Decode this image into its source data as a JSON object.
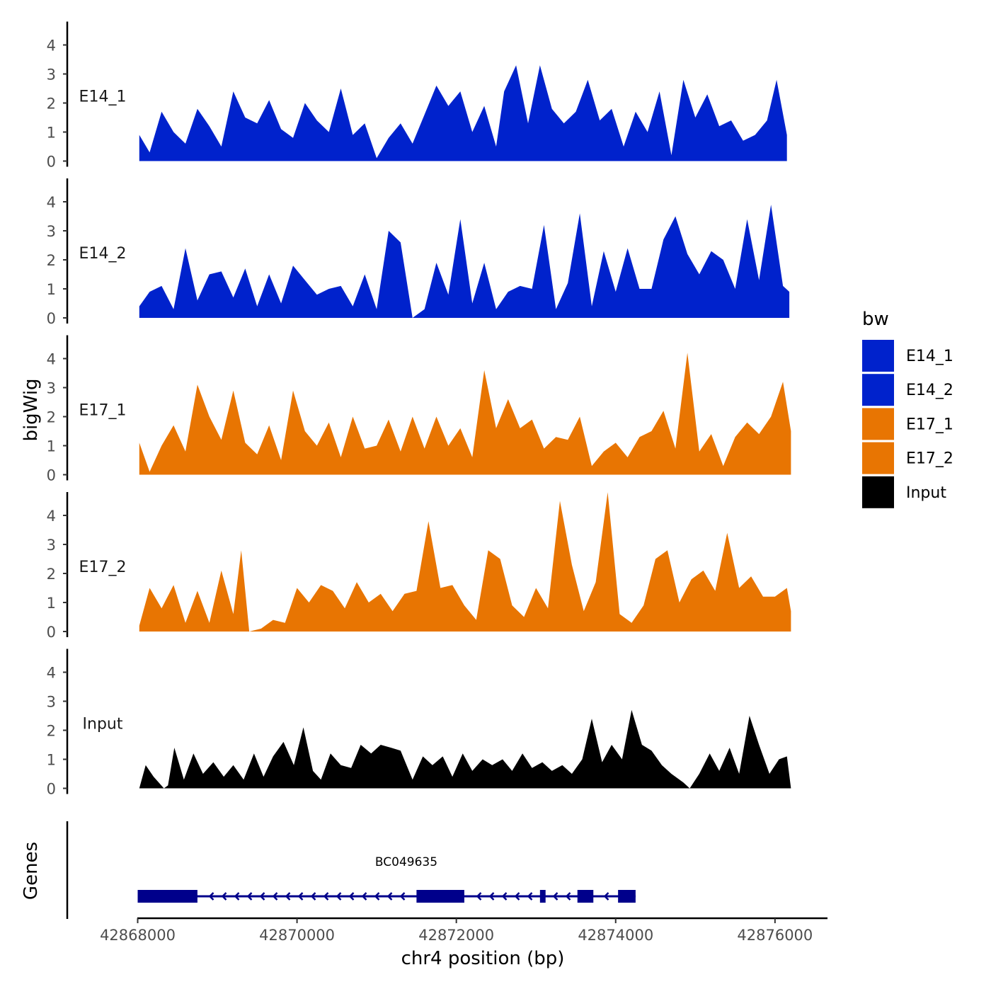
{
  "chart_data": {
    "type": "area",
    "title": "",
    "ylabel": "bigWig",
    "genes_label": "Genes",
    "xlabel": "chr4 position (bp)",
    "xlim": [
      42867800,
      42876650
    ],
    "ylim": [
      0,
      4.8
    ],
    "x_ticks": [
      42868000,
      42870000,
      42872000,
      42874000,
      42876000
    ],
    "y_ticks": [
      0,
      1,
      2,
      3,
      4
    ],
    "legend": {
      "title": "bw",
      "position": "right",
      "items": [
        {
          "label": "E14_1",
          "color": "#0022CC"
        },
        {
          "label": "E14_2",
          "color": "#0022CC"
        },
        {
          "label": "E17_1",
          "color": "#E87502"
        },
        {
          "label": "E17_2",
          "color": "#E87502"
        },
        {
          "label": "Input",
          "color": "#000000"
        }
      ]
    },
    "series": [
      {
        "name": "E14_1",
        "color": "#0022CC",
        "x": [
          42868020,
          42868150,
          42868300,
          42868450,
          42868600,
          42868750,
          42868900,
          42869050,
          42869200,
          42869350,
          42869500,
          42869650,
          42869800,
          42869950,
          42870100,
          42870250,
          42870400,
          42870550,
          42870700,
          42870850,
          42871000,
          42871150,
          42871300,
          42871450,
          42871600,
          42871750,
          42871900,
          42872050,
          42872200,
          42872350,
          42872500,
          42872600,
          42872750,
          42872900,
          42873050,
          42873200,
          42873350,
          42873500,
          42873650,
          42873800,
          42873950,
          42874100,
          42874250,
          42874400,
          42874550,
          42874700,
          42874850,
          42875000,
          42875150,
          42875300,
          42875450,
          42875600,
          42875750,
          42875900,
          42876020,
          42876150
        ],
        "values": [
          0.9,
          0.3,
          1.7,
          1.0,
          0.6,
          1.8,
          1.2,
          0.5,
          2.4,
          1.5,
          1.3,
          2.1,
          1.1,
          0.8,
          2.0,
          1.4,
          1.0,
          2.5,
          0.9,
          1.3,
          0.1,
          0.8,
          1.3,
          0.6,
          1.6,
          2.6,
          1.9,
          2.4,
          1.0,
          1.9,
          0.5,
          2.4,
          3.3,
          1.3,
          3.3,
          1.8,
          1.3,
          1.7,
          2.8,
          1.4,
          1.8,
          0.5,
          1.7,
          1.0,
          2.4,
          0.2,
          2.8,
          1.5,
          2.3,
          1.2,
          1.4,
          0.7,
          0.9,
          1.4,
          2.8,
          0.9
        ]
      },
      {
        "name": "E14_2",
        "color": "#0022CC",
        "x": [
          42868020,
          42868150,
          42868300,
          42868450,
          42868600,
          42868750,
          42868900,
          42869050,
          42869200,
          42869350,
          42869500,
          42869650,
          42869800,
          42869950,
          42870100,
          42870250,
          42870400,
          42870550,
          42870700,
          42870850,
          42871000,
          42871150,
          42871300,
          42871450,
          42871600,
          42871750,
          42871900,
          42872050,
          42872200,
          42872350,
          42872500,
          42872650,
          42872800,
          42872950,
          42873100,
          42873250,
          42873400,
          42873550,
          42873700,
          42873850,
          42874000,
          42874150,
          42874300,
          42874450,
          42874600,
          42874750,
          42874900,
          42875050,
          42875200,
          42875350,
          42875500,
          42875650,
          42875800,
          42875950,
          42876100,
          42876180
        ],
        "values": [
          0.4,
          0.9,
          1.1,
          0.3,
          2.4,
          0.6,
          1.5,
          1.6,
          0.7,
          1.7,
          0.4,
          1.5,
          0.5,
          1.8,
          1.3,
          0.8,
          1.0,
          1.1,
          0.4,
          1.5,
          0.3,
          3.0,
          2.6,
          0.0,
          0.3,
          1.9,
          0.8,
          3.4,
          0.5,
          1.9,
          0.3,
          0.9,
          1.1,
          1.0,
          3.2,
          0.3,
          1.2,
          3.6,
          0.4,
          2.3,
          0.9,
          2.4,
          1.0,
          1.0,
          2.7,
          3.5,
          2.2,
          1.5,
          2.3,
          2.0,
          1.0,
          3.4,
          1.3,
          3.9,
          1.1,
          0.9
        ]
      },
      {
        "name": "E17_1",
        "color": "#E87502",
        "x": [
          42868020,
          42868150,
          42868300,
          42868450,
          42868600,
          42868750,
          42868900,
          42869050,
          42869200,
          42869350,
          42869500,
          42869650,
          42869800,
          42869950,
          42870100,
          42870250,
          42870400,
          42870550,
          42870700,
          42870850,
          42871000,
          42871150,
          42871300,
          42871450,
          42871600,
          42871750,
          42871900,
          42872050,
          42872200,
          42872350,
          42872500,
          42872650,
          42872800,
          42872950,
          42873100,
          42873250,
          42873400,
          42873550,
          42873700,
          42873850,
          42874000,
          42874150,
          42874300,
          42874450,
          42874600,
          42874750,
          42874900,
          42875050,
          42875200,
          42875350,
          42875500,
          42875650,
          42875800,
          42875950,
          42876100,
          42876200
        ],
        "values": [
          1.1,
          0.1,
          1.0,
          1.7,
          0.8,
          3.1,
          2.0,
          1.2,
          2.9,
          1.1,
          0.7,
          1.7,
          0.5,
          2.9,
          1.5,
          1.0,
          1.8,
          0.6,
          2.0,
          0.9,
          1.0,
          1.9,
          0.8,
          2.0,
          0.9,
          2.0,
          1.0,
          1.6,
          0.6,
          3.6,
          1.6,
          2.6,
          1.6,
          1.9,
          0.9,
          1.3,
          1.2,
          2.0,
          0.3,
          0.8,
          1.1,
          0.6,
          1.3,
          1.5,
          2.2,
          0.9,
          4.2,
          0.8,
          1.4,
          0.3,
          1.3,
          1.8,
          1.4,
          2.0,
          3.2,
          1.5
        ]
      },
      {
        "name": "E17_2",
        "color": "#E87502",
        "x": [
          42868020,
          42868150,
          42868300,
          42868450,
          42868600,
          42868750,
          42868900,
          42869050,
          42869200,
          42869300,
          42869400,
          42869550,
          42869700,
          42869850,
          42870000,
          42870150,
          42870300,
          42870450,
          42870600,
          42870750,
          42870900,
          42871050,
          42871200,
          42871350,
          42871500,
          42871650,
          42871800,
          42871950,
          42872100,
          42872250,
          42872400,
          42872550,
          42872700,
          42872850,
          42873000,
          42873150,
          42873300,
          42873450,
          42873600,
          42873750,
          42873900,
          42874050,
          42874200,
          42874350,
          42874500,
          42874650,
          42874800,
          42874950,
          42875100,
          42875250,
          42875400,
          42875550,
          42875700,
          42875850,
          42876000,
          42876150,
          42876200
        ],
        "values": [
          0.2,
          1.5,
          0.8,
          1.6,
          0.3,
          1.4,
          0.3,
          2.1,
          0.6,
          2.8,
          0.0,
          0.1,
          0.4,
          0.3,
          1.5,
          1.0,
          1.6,
          1.4,
          0.8,
          1.7,
          1.0,
          1.3,
          0.7,
          1.3,
          1.4,
          3.8,
          1.5,
          1.6,
          0.9,
          0.4,
          2.8,
          2.5,
          0.9,
          0.5,
          1.5,
          0.8,
          4.5,
          2.3,
          0.7,
          1.7,
          4.8,
          0.6,
          0.3,
          0.9,
          2.5,
          2.8,
          1.0,
          1.8,
          2.1,
          1.4,
          3.4,
          1.5,
          1.9,
          1.2,
          1.2,
          1.5,
          0.7
        ]
      },
      {
        "name": "Input",
        "color": "#000000",
        "x": [
          42868020,
          42868100,
          42868200,
          42868330,
          42868380,
          42868460,
          42868580,
          42868700,
          42868820,
          42868950,
          42869080,
          42869200,
          42869330,
          42869460,
          42869580,
          42869700,
          42869830,
          42869960,
          42870080,
          42870200,
          42870300,
          42870420,
          42870550,
          42870680,
          42870800,
          42870930,
          42871050,
          42871180,
          42871300,
          42871450,
          42871580,
          42871700,
          42871830,
          42871950,
          42872080,
          42872200,
          42872330,
          42872450,
          42872580,
          42872700,
          42872830,
          42872950,
          42873080,
          42873200,
          42873330,
          42873450,
          42873580,
          42873700,
          42873830,
          42873950,
          42874080,
          42874200,
          42874330,
          42874450,
          42874580,
          42874700,
          42874850,
          42874930,
          42875050,
          42875180,
          42875300,
          42875430,
          42875550,
          42875680,
          42875800,
          42875930,
          42876050,
          42876150,
          42876200
        ],
        "values": [
          0.0,
          0.8,
          0.4,
          0.0,
          0.1,
          1.4,
          0.3,
          1.2,
          0.5,
          0.9,
          0.4,
          0.8,
          0.3,
          1.2,
          0.4,
          1.1,
          1.6,
          0.8,
          2.1,
          0.6,
          0.3,
          1.2,
          0.8,
          0.7,
          1.5,
          1.2,
          1.5,
          1.4,
          1.3,
          0.3,
          1.1,
          0.8,
          1.1,
          0.4,
          1.2,
          0.6,
          1.0,
          0.8,
          1.0,
          0.6,
          1.2,
          0.7,
          0.9,
          0.6,
          0.8,
          0.5,
          1.0,
          2.4,
          0.9,
          1.5,
          1.0,
          2.7,
          1.5,
          1.3,
          0.8,
          0.5,
          0.2,
          0.0,
          0.5,
          1.2,
          0.6,
          1.4,
          0.5,
          2.5,
          1.5,
          0.5,
          1.0,
          1.1,
          0.0
        ]
      }
    ],
    "genes": [
      {
        "name": "BC049635",
        "strand": "-",
        "start": 42868000,
        "end": 42874250,
        "color": "#00008B",
        "exons": [
          [
            42868000,
            42868750
          ],
          [
            42871500,
            42872100
          ],
          [
            42873050,
            42873120
          ],
          [
            42873520,
            42873720
          ],
          [
            42874030,
            42874250
          ]
        ]
      }
    ]
  }
}
